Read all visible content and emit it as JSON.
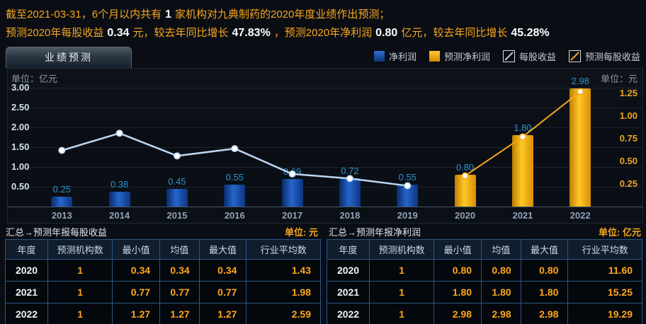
{
  "headline": {
    "l1a": "截至2021-03-31，6个月以内共有",
    "l1n": "1",
    "l1b": "家机构对九典制药的2020年度业绩作出预测；",
    "l2a": "预测2020年每股收益",
    "l2n1": "0.34",
    "l2b": "元，较去年同比增长",
    "l2n2": "47.83%",
    "l2c": "，预测2020年净利润",
    "l2n3": "0.80",
    "l2d": "亿元，较去年同比增长",
    "l2n4": "45.28%"
  },
  "tab": {
    "label": "业绩预测"
  },
  "legend": {
    "items": [
      {
        "label": "净利润",
        "key": "net_profit"
      },
      {
        "label": "预测净利润",
        "key": "forecast_net_profit"
      },
      {
        "label": "每股收益",
        "key": "eps"
      },
      {
        "label": "预测每股收益",
        "key": "forecast_eps"
      }
    ]
  },
  "colors": {
    "accent_orange": "#f5a71f",
    "bar_blue": "#2566cc",
    "bar_orange": "#ffc828",
    "eps_line": "#bdd6f2",
    "forecast_eps_line": "#f7a71e",
    "bar_label_teal": "#2e93cc",
    "table_border_blue": "#2a5788"
  },
  "chart_data": {
    "type": "combo-bar-line",
    "categories": [
      "2013",
      "2014",
      "2015",
      "2016",
      "2017",
      "2018",
      "2019",
      "2020",
      "2021",
      "2022"
    ],
    "left_axis": {
      "unit": "单位：亿元",
      "ticks": [
        3.0,
        2.5,
        2.0,
        1.5,
        1.0,
        0.5
      ],
      "range": [
        0,
        3.5
      ]
    },
    "right_axis": {
      "unit": "单位：元",
      "ticks": [
        1.25,
        1.0,
        0.75,
        0.5,
        0.25
      ],
      "range": [
        0,
        1.53
      ]
    },
    "grid": true,
    "legend_position": "top-right",
    "series": [
      {
        "name": "净利润",
        "key": "net_profit",
        "type": "bar",
        "axis": "left",
        "color": "#2566cc",
        "values": [
          0.25,
          0.38,
          0.45,
          0.55,
          0.69,
          0.72,
          0.55,
          null,
          null,
          null
        ]
      },
      {
        "name": "预测净利润",
        "key": "forecast_net_profit",
        "type": "bar",
        "axis": "left",
        "color": "#ffc828",
        "values": [
          null,
          null,
          null,
          null,
          null,
          null,
          null,
          0.8,
          1.8,
          2.98
        ]
      },
      {
        "name": "每股收益",
        "key": "eps",
        "type": "line",
        "axis": "right",
        "color": "#bdd6f2",
        "values": [
          0.62,
          0.81,
          0.56,
          0.64,
          0.36,
          0.31,
          0.23,
          null,
          null,
          null
        ]
      },
      {
        "name": "预测每股收益",
        "key": "forecast_eps",
        "type": "line",
        "axis": "right",
        "color": "#f7a71e",
        "values": [
          null,
          null,
          null,
          null,
          null,
          null,
          null,
          0.34,
          0.77,
          1.27
        ]
      }
    ]
  },
  "tables": [
    {
      "caption": "汇总→预测年报每股收益",
      "unit": "单位: 元",
      "headers": [
        "年度",
        "预测机构数",
        "最小值",
        "均值",
        "最大值",
        "行业平均数"
      ],
      "rows": [
        [
          "2020",
          "1",
          "0.34",
          "0.34",
          "0.34",
          "1.43"
        ],
        [
          "2021",
          "1",
          "0.77",
          "0.77",
          "0.77",
          "1.98"
        ],
        [
          "2022",
          "1",
          "1.27",
          "1.27",
          "1.27",
          "2.59"
        ]
      ]
    },
    {
      "caption": "汇总→预测年报净利润",
      "unit": "单位: 亿元",
      "headers": [
        "年度",
        "预测机构数",
        "最小值",
        "均值",
        "最大值",
        "行业平均数"
      ],
      "rows": [
        [
          "2020",
          "1",
          "0.80",
          "0.80",
          "0.80",
          "11.60"
        ],
        [
          "2021",
          "1",
          "1.80",
          "1.80",
          "1.80",
          "15.25"
        ],
        [
          "2022",
          "1",
          "2.98",
          "2.98",
          "2.98",
          "19.29"
        ]
      ]
    }
  ]
}
